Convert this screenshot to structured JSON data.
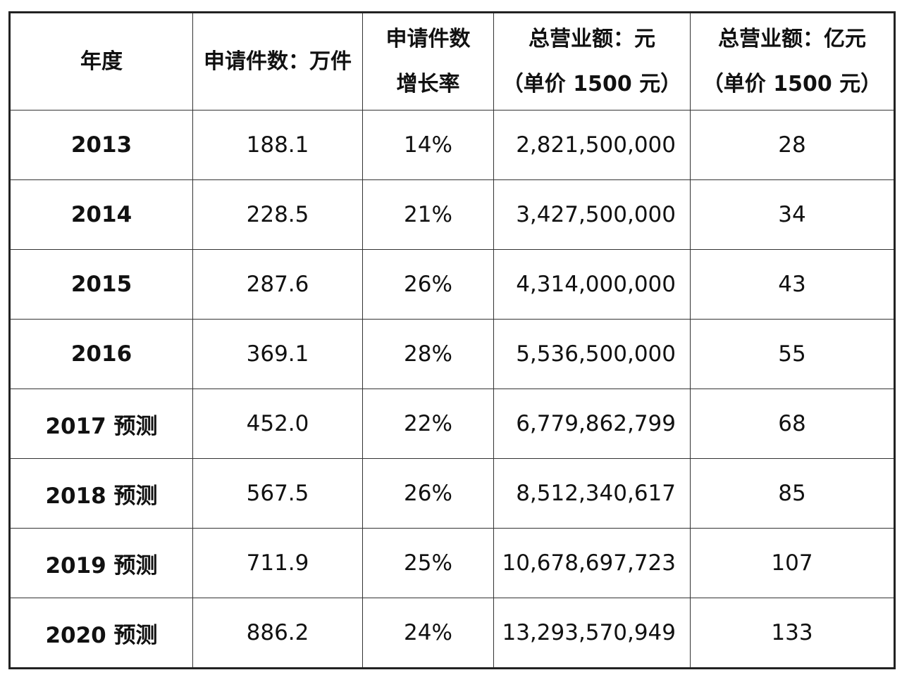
{
  "table": {
    "header": [
      [
        "年度"
      ],
      [
        "申请件数：万件"
      ],
      [
        "申请件数",
        "增长率"
      ],
      [
        "总营业额：元",
        "（单价 1500 元）"
      ],
      [
        "总营业额：亿元",
        "（单价 1500 元）"
      ]
    ],
    "rows": [
      [
        "2013",
        "188.1",
        "14%",
        "2,821,500,000",
        "28"
      ],
      [
        "2014",
        "228.5",
        "21%",
        "3,427,500,000",
        "34"
      ],
      [
        "2015",
        "287.6",
        "26%",
        "4,314,000,000",
        "43"
      ],
      [
        "2016",
        "369.1",
        "28%",
        "5,536,500,000",
        "55"
      ],
      [
        "2017 预测",
        "452.0",
        "22%",
        "6,779,862,799",
        "68"
      ],
      [
        "2018 预测",
        "567.5",
        "26%",
        "8,512,340,617",
        "85"
      ],
      [
        "2019 预测",
        "711.9",
        "25%",
        "10,678,697,723",
        "107"
      ],
      [
        "2020 预测",
        "886.2",
        "24%",
        "13,293,570,949",
        "133"
      ]
    ]
  }
}
